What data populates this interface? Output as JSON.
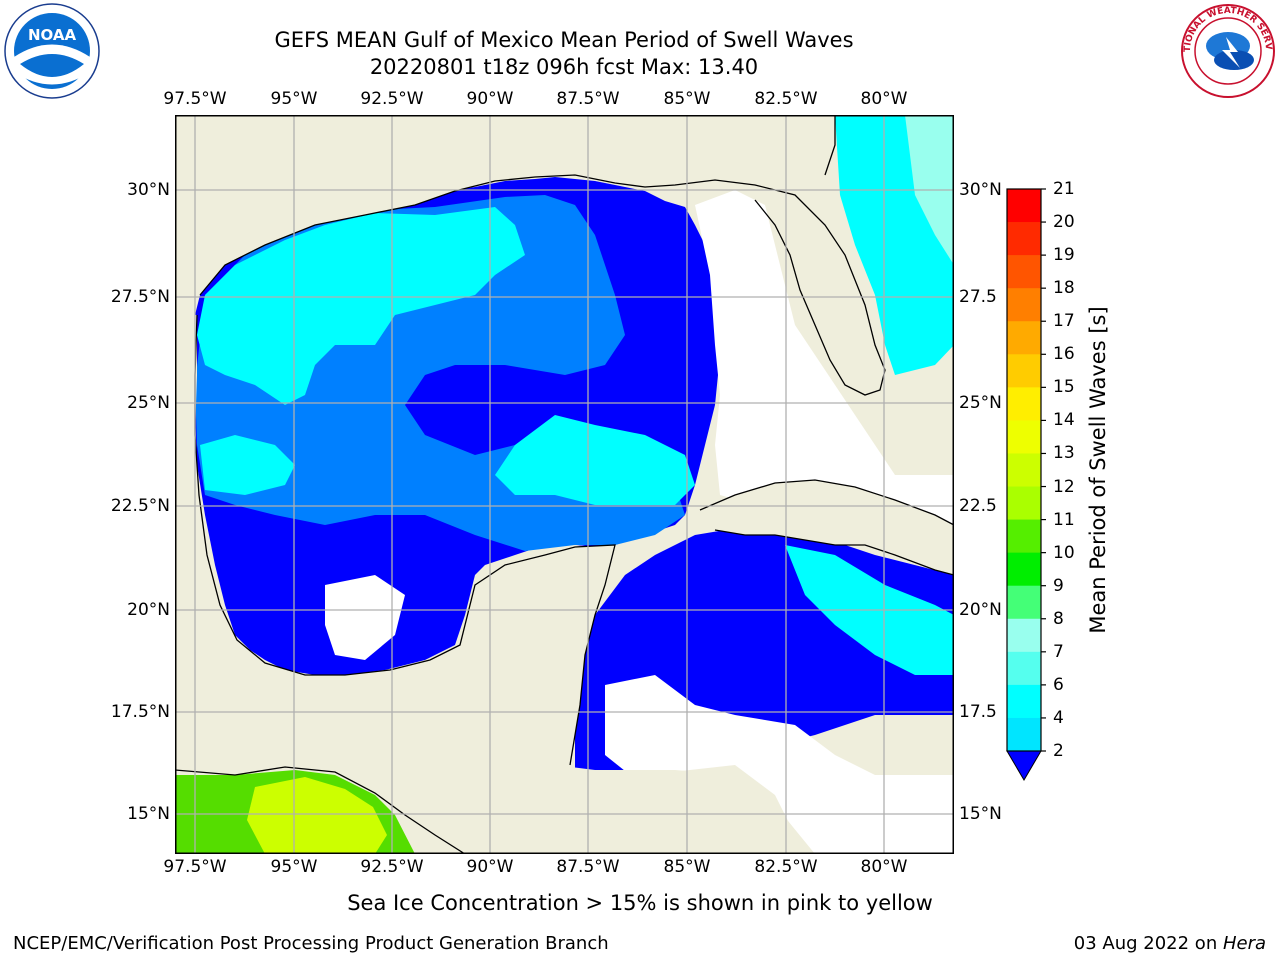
{
  "title_line1": "GEFS MEAN Gulf of Mexico Mean Period of Swell Waves",
  "title_line2": "20220801 t18z 096h fcst   Max: 13.40",
  "logos": {
    "left": "NOAA",
    "right": "NATIONAL WEATHER SERVICE"
  },
  "lon_labels": [
    "97.5°W",
    "95°W",
    "92.5°W",
    "90°W",
    "87.5°W",
    "85°W",
    "82.5°W",
    "80°W"
  ],
  "lat_labels": [
    "30°N",
    "27.5°N",
    "25°N",
    "22.5°N",
    "20°N",
    "17.5°N",
    "15°N"
  ],
  "lat_labels_right": [
    "30°N",
    "27.5",
    "25°N",
    "22.5",
    "20°N",
    "17.5",
    "15°N"
  ],
  "colorbar": {
    "title": "Mean Period of Swell Waves [s]",
    "ticks": [
      "21",
      "20",
      "19",
      "18",
      "17",
      "16",
      "15",
      "14",
      "13",
      "12",
      "11",
      "10",
      "9",
      "8",
      "7",
      "6",
      "4",
      "2"
    ],
    "colors": [
      "#ff0000",
      "#ff2a00",
      "#ff5500",
      "#ff7f00",
      "#ffaa00",
      "#ffcc00",
      "#ffee00",
      "#eeff00",
      "#ccff00",
      "#aaff00",
      "#55ee00",
      "#00ee00",
      "#44ff77",
      "#99ffee",
      "#55ffee",
      "#00ffff",
      "#00e5ff",
      "#0080ff",
      "#0000ff"
    ],
    "extend": "min"
  },
  "note": "Sea Ice Concentration > 15% is shown in pink to yellow",
  "credit_left": "NCEP/EMC/Verification Post Processing Product Generation Branch",
  "credit_right_date": "03 Aug 2022 on ",
  "credit_right_host": "Hera",
  "colors": {
    "land": "#efeedc",
    "ocean_high": "#00ffff",
    "ocean_mid": "#0080ff",
    "ocean_low": "#0000ff",
    "nodata": "#ffffff",
    "pacific_green": "#55dd00",
    "pacific_yellow": "#ccff00"
  }
}
